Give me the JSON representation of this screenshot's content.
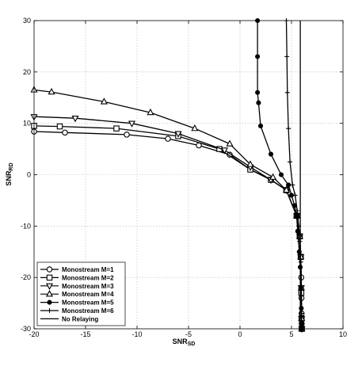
{
  "chart_data": {
    "type": "line",
    "xlabel": "SNR",
    "xlabel_sub": "SD",
    "ylabel": "SNR",
    "ylabel_sub": "RD",
    "xlim": [
      -20,
      10
    ],
    "ylim": [
      -30,
      30
    ],
    "xticks": [
      -20,
      -15,
      -10,
      -5,
      0,
      5,
      10
    ],
    "yticks": [
      -30,
      -20,
      -10,
      0,
      10,
      20,
      30
    ],
    "grid": true,
    "legend_position": "bottom-left",
    "series": [
      {
        "name": "Monostream M=1",
        "marker": "circle",
        "x": [
          -20,
          -17,
          -11,
          -7,
          -4,
          -1,
          1,
          3,
          4.5,
          5.5,
          5.8,
          5.9,
          5.95,
          5.97,
          5.98,
          5.99,
          6.0
        ],
        "y": [
          8.4,
          8.2,
          7.8,
          7.0,
          5.7,
          3.9,
          1.0,
          -1.0,
          -3.0,
          -8.0,
          -12,
          -16,
          -20,
          -24,
          -27,
          -29,
          -30
        ]
      },
      {
        "name": "Monostream M=2",
        "marker": "square",
        "x": [
          -20,
          -17.5,
          -12,
          -6,
          -2,
          1,
          3,
          4.5,
          5.5,
          5.8,
          5.9,
          5.95,
          5.98,
          6.0
        ],
        "y": [
          9.5,
          9.4,
          9.0,
          7.5,
          5.0,
          1.0,
          -1.0,
          -3.0,
          -8.0,
          -12,
          -16,
          -23,
          -28,
          -30
        ]
      },
      {
        "name": "Monostream M=3",
        "marker": "triangle-down",
        "x": [
          -20,
          -16,
          -10.5,
          -6,
          -1.5,
          1,
          3,
          4.5,
          5.5,
          5.8,
          5.9,
          5.95,
          5.98,
          6.0
        ],
        "y": [
          11.3,
          11.0,
          10.0,
          8.0,
          4.8,
          1.5,
          -1.0,
          -3.0,
          -8.0,
          -12,
          -16,
          -22,
          -28,
          -30
        ]
      },
      {
        "name": "Monostream M=4",
        "marker": "triangle-up",
        "x": [
          -20,
          -18.3,
          -13.2,
          -8.7,
          -4.4,
          -1,
          1,
          3.2,
          4.5,
          5.5,
          5.8,
          5.9,
          5.95,
          5.98,
          6.0
        ],
        "y": [
          16.5,
          16.1,
          14.2,
          12.1,
          9.0,
          6.0,
          2.0,
          -0.5,
          -3.0,
          -8.0,
          -12,
          -16,
          -22,
          -28,
          -30
        ]
      },
      {
        "name": "Monostream M=5",
        "marker": "dot",
        "x": [
          1.7,
          1.7,
          1.7,
          1.8,
          2.0,
          3.0,
          4.0,
          4.7,
          5.0,
          5.3,
          5.5,
          5.6,
          5.75,
          5.85,
          5.9,
          5.95,
          5.97,
          5.99,
          6.0
        ],
        "y": [
          30,
          23,
          16,
          14,
          9.5,
          4.0,
          0.0,
          -2.0,
          -4.0,
          -6.0,
          -8.0,
          -11,
          -15,
          -18,
          -22,
          -26,
          -29,
          -30,
          -30
        ]
      },
      {
        "name": "Monostream M=6",
        "marker": "plus",
        "x": [
          4.5,
          4.55,
          4.6,
          4.7,
          4.85,
          5.1,
          5.35,
          5.55,
          5.7,
          5.8,
          5.9,
          5.95,
          5.98,
          6.0
        ],
        "y": [
          30,
          23,
          16,
          9.0,
          2.5,
          -2.0,
          -4.0,
          -7.0,
          -10,
          -13,
          -17,
          -22,
          -27,
          -30
        ]
      },
      {
        "name": "No Relaying",
        "marker": "none",
        "x": [
          5.85,
          5.85
        ],
        "y": [
          30,
          -30
        ]
      }
    ]
  }
}
